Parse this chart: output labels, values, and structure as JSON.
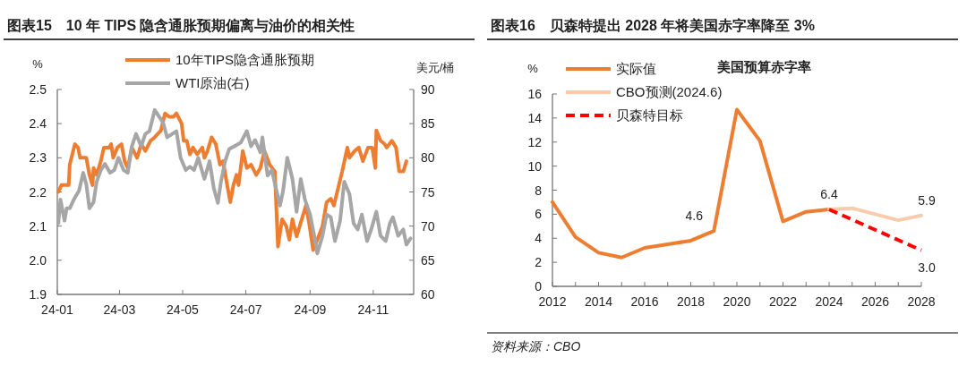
{
  "chart_data": [
    {
      "type": "line",
      "title": "图表15　10 年 TIPS 隐含通胀预期偏离与油价的相关性",
      "ylabel": "%",
      "y2label": "美元/桶",
      "xlim": [
        "2024-01-01",
        "2024-12-10"
      ],
      "xticks": [
        {
          "value": "2024-01-01",
          "label": "24-01"
        },
        {
          "value": "2024-03-01",
          "label": "24-03"
        },
        {
          "value": "2024-05-01",
          "label": "24-05"
        },
        {
          "value": "2024-07-01",
          "label": "24-07"
        },
        {
          "value": "2024-09-01",
          "label": "24-09"
        },
        {
          "value": "2024-11-01",
          "label": "24-11"
        }
      ],
      "ylim": [
        1.9,
        2.5
      ],
      "yticks": [
        {
          "value": 1.9,
          "label": "1.9"
        },
        {
          "value": 2.0,
          "label": "2.0"
        },
        {
          "value": 2.1,
          "label": "2.1"
        },
        {
          "value": 2.2,
          "label": "2.2"
        },
        {
          "value": 2.3,
          "label": "2.3"
        },
        {
          "value": 2.4,
          "label": "2.4"
        },
        {
          "value": 2.5,
          "label": "2.5"
        }
      ],
      "y2lim": [
        60,
        90
      ],
      "y2ticks": [
        60,
        65,
        70,
        75,
        80,
        85,
        90
      ],
      "legend": "top",
      "grid": false,
      "series": [
        {
          "name": "10年TIPS隐含通胀预期",
          "color": "#ed7d31",
          "x": [
            "2024-01-02",
            "2024-01-05",
            "2024-01-12",
            "2024-01-13",
            "2024-01-18",
            "2024-01-21",
            "2024-01-23",
            "2024-01-29",
            "2024-02-01",
            "2024-02-04",
            "2024-02-05",
            "2024-02-08",
            "2024-02-12",
            "2024-02-15",
            "2024-02-20",
            "2024-02-22",
            "2024-02-24",
            "2024-02-28",
            "2024-03-03",
            "2024-03-06",
            "2024-03-09",
            "2024-03-13",
            "2024-03-18",
            "2024-03-22",
            "2024-03-26",
            "2024-03-31",
            "2024-04-04",
            "2024-04-10",
            "2024-04-14",
            "2024-04-18",
            "2024-04-22",
            "2024-04-25",
            "2024-04-30",
            "2024-05-02",
            "2024-05-05",
            "2024-05-08",
            "2024-05-11",
            "2024-05-15",
            "2024-05-20",
            "2024-05-22",
            "2024-05-25",
            "2024-05-29",
            "2024-06-02",
            "2024-06-06",
            "2024-06-09",
            "2024-06-13",
            "2024-06-16",
            "2024-06-19",
            "2024-06-22",
            "2024-06-24",
            "2024-06-28",
            "2024-07-02",
            "2024-07-06",
            "2024-07-11",
            "2024-07-15",
            "2024-07-19",
            "2024-07-24",
            "2024-07-29",
            "2024-08-01",
            "2024-08-05",
            "2024-08-09",
            "2024-08-12",
            "2024-08-15",
            "2024-08-19",
            "2024-08-23",
            "2024-08-28",
            "2024-08-31",
            "2024-09-04",
            "2024-09-08",
            "2024-09-13",
            "2024-09-17",
            "2024-09-21",
            "2024-09-24",
            "2024-09-28",
            "2024-10-02",
            "2024-10-07",
            "2024-10-09",
            "2024-10-14",
            "2024-10-18",
            "2024-10-22",
            "2024-10-27",
            "2024-10-31",
            "2024-11-03",
            "2024-11-04",
            "2024-11-08",
            "2024-11-12",
            "2024-11-14",
            "2024-11-19",
            "2024-11-23",
            "2024-11-26",
            "2024-11-30",
            "2024-12-03"
          ],
          "values": [
            2.2,
            2.22,
            2.22,
            2.28,
            2.34,
            2.33,
            2.3,
            2.3,
            2.25,
            2.22,
            2.27,
            2.25,
            2.29,
            2.33,
            2.33,
            2.34,
            2.3,
            2.33,
            2.34,
            2.29,
            2.27,
            2.33,
            2.3,
            2.34,
            2.32,
            2.35,
            2.36,
            2.38,
            2.43,
            2.42,
            2.42,
            2.43,
            2.4,
            2.35,
            2.35,
            2.31,
            2.33,
            2.31,
            2.33,
            2.3,
            2.32,
            2.36,
            2.34,
            2.28,
            2.29,
            2.22,
            2.17,
            2.22,
            2.25,
            2.22,
            2.32,
            2.27,
            2.28,
            2.25,
            2.27,
            2.32,
            2.28,
            2.26,
            2.04,
            2.12,
            2.1,
            2.06,
            2.12,
            2.07,
            2.11,
            2.16,
            2.11,
            2.03,
            2.06,
            2.1,
            2.17,
            2.18,
            2.16,
            2.21,
            2.26,
            2.33,
            2.3,
            2.32,
            2.33,
            2.29,
            2.33,
            2.33,
            2.27,
            2.38,
            2.35,
            2.34,
            2.33,
            2.35,
            2.33,
            2.26,
            2.26,
            2.29
          ]
        },
        {
          "name": "WTI原油(右)",
          "color": "#a6a6a6",
          "axis": "y2",
          "x": [
            "2024-01-02",
            "2024-01-04",
            "2024-01-08",
            "2024-01-10",
            "2024-01-13",
            "2024-01-17",
            "2024-01-22",
            "2024-01-26",
            "2024-01-29",
            "2024-02-01",
            "2024-02-05",
            "2024-02-08",
            "2024-02-12",
            "2024-02-16",
            "2024-02-21",
            "2024-02-25",
            "2024-02-29",
            "2024-03-05",
            "2024-03-09",
            "2024-03-13",
            "2024-03-17",
            "2024-03-22",
            "2024-03-26",
            "2024-03-30",
            "2024-04-04",
            "2024-04-08",
            "2024-04-12",
            "2024-04-16",
            "2024-04-21",
            "2024-04-25",
            "2024-04-29",
            "2024-05-04",
            "2024-05-08",
            "2024-05-12",
            "2024-05-16",
            "2024-05-22",
            "2024-05-27",
            "2024-05-31",
            "2024-06-04",
            "2024-06-07",
            "2024-06-11",
            "2024-06-15",
            "2024-06-20",
            "2024-06-26",
            "2024-07-02",
            "2024-07-06",
            "2024-07-10",
            "2024-07-15",
            "2024-07-17",
            "2024-07-22",
            "2024-07-26",
            "2024-07-30",
            "2024-08-03",
            "2024-08-06",
            "2024-08-10",
            "2024-08-15",
            "2024-08-19",
            "2024-08-23",
            "2024-08-27",
            "2024-09-01",
            "2024-09-05",
            "2024-09-08",
            "2024-09-13",
            "2024-09-17",
            "2024-09-21",
            "2024-09-25",
            "2024-09-30",
            "2024-10-04",
            "2024-10-09",
            "2024-10-13",
            "2024-10-17",
            "2024-10-21",
            "2024-10-26",
            "2024-10-30",
            "2024-11-04",
            "2024-11-08",
            "2024-11-13",
            "2024-11-17",
            "2024-11-20",
            "2024-11-25",
            "2024-11-30",
            "2024-12-03",
            "2024-12-07"
          ],
          "values": [
            70.4,
            73.9,
            70.8,
            72.6,
            72.6,
            73.9,
            75.2,
            77.8,
            76.1,
            72.6,
            73.5,
            76.5,
            78.2,
            79.1,
            77.8,
            78.2,
            80.0,
            78.2,
            77.8,
            81.7,
            83.5,
            81.7,
            83.5,
            83.9,
            87.0,
            86.1,
            85.2,
            83.0,
            83.5,
            83.9,
            80.0,
            78.2,
            78.7,
            78.2,
            80.0,
            76.9,
            79.5,
            75.6,
            73.4,
            76.5,
            79.5,
            81.3,
            81.7,
            82.2,
            83.9,
            81.7,
            82.6,
            80.8,
            83.0,
            77.4,
            78.2,
            75.6,
            73.0,
            75.2,
            80.0,
            76.9,
            72.1,
            76.9,
            73.9,
            71.7,
            68.6,
            66.0,
            68.6,
            71.7,
            71.3,
            67.8,
            70.8,
            76.5,
            74.7,
            70.4,
            69.5,
            71.7,
            67.8,
            69.5,
            72.1,
            68.6,
            67.8,
            70.4,
            71.3,
            68.6,
            69.5,
            67.3,
            68.2
          ]
        }
      ]
    },
    {
      "type": "line",
      "title": "图表16　贝森特提出 2028 年将美国赤字率降至 3%",
      "subtitle": "美国预算赤字率",
      "ylabel": "%",
      "xlim": [
        2012,
        2028
      ],
      "xticks": [
        2012,
        {
          "value": 2013,
          "label": null
        },
        2014,
        {
          "value": 2015,
          "label": null
        },
        2016,
        {
          "value": 2017,
          "label": null
        },
        2018,
        {
          "value": 2019,
          "label": null
        },
        2020,
        {
          "value": 2021,
          "label": null
        },
        2022,
        {
          "value": 2023,
          "label": null
        },
        2024,
        {
          "value": 2025,
          "label": null
        },
        2026,
        {
          "value": 2027,
          "label": null
        },
        2028
      ],
      "ylim": [
        0,
        16
      ],
      "yticks": [
        0,
        2,
        4,
        6,
        8,
        10,
        12,
        14,
        16
      ],
      "legend": "top left",
      "grid": false,
      "series": [
        {
          "name": "实际值",
          "color": "#ed7d31",
          "x": [
            2012,
            2013,
            2014,
            2015,
            2016,
            2017,
            2018,
            2019,
            2020,
            2021,
            2022,
            2023,
            2024
          ],
          "values": [
            7.0,
            4.1,
            2.8,
            2.4,
            3.2,
            3.5,
            3.8,
            4.6,
            14.7,
            12.1,
            5.4,
            6.2,
            6.4
          ],
          "value_labels": [
            null,
            null,
            null,
            null,
            null,
            null,
            null,
            "4.6",
            null,
            null,
            null,
            null,
            "6.4"
          ]
        },
        {
          "name": "CBO预测(2024.6)",
          "color": "#f8cbad",
          "x": [
            2024,
            2025,
            2026,
            2027,
            2028
          ],
          "values": [
            6.4,
            6.5,
            6.0,
            5.5,
            5.9
          ],
          "value_labels": [
            null,
            null,
            null,
            null,
            "5.9"
          ]
        },
        {
          "name": "贝森特目标",
          "color": "#ff0000",
          "line_style": "dashed",
          "x": [
            2024,
            2028
          ],
          "values": [
            6.4,
            3.0
          ],
          "value_labels": [
            null,
            "3.0"
          ]
        }
      ],
      "annotations": [
        "资料来源：CBO"
      ]
    }
  ]
}
